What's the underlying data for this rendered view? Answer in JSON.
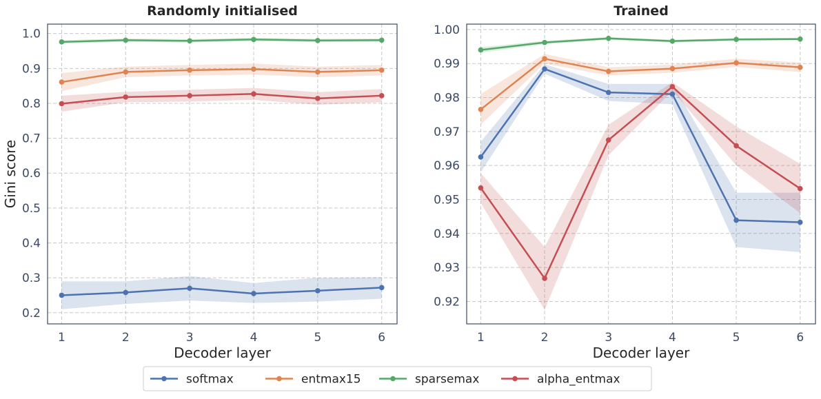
{
  "chart_data": [
    {
      "type": "line",
      "title": "Randomly initialised",
      "xlabel": "Decoder layer",
      "ylabel": "Gini score",
      "x": [
        1,
        2,
        3,
        4,
        5,
        6
      ],
      "xlim": [
        0.78,
        6.24
      ],
      "ylim": [
        0.168,
        1.027
      ],
      "yticks": [
        0.2,
        0.3,
        0.4,
        0.5,
        0.6,
        0.7,
        0.8,
        0.9,
        1.0
      ],
      "ytick_labels": [
        "0.2",
        "0.3",
        "0.4",
        "0.5",
        "0.6",
        "0.7",
        "0.8",
        "0.9",
        "1.0"
      ],
      "grid": true,
      "series": [
        {
          "name": "softmax",
          "color": "#4c72b0",
          "values": [
            0.25,
            0.258,
            0.27,
            0.255,
            0.263,
            0.272
          ],
          "lower": [
            0.21,
            0.225,
            0.235,
            0.228,
            0.232,
            0.24
          ],
          "upper": [
            0.29,
            0.29,
            0.305,
            0.285,
            0.3,
            0.302
          ]
        },
        {
          "name": "entmax15",
          "color": "#dd8452",
          "values": [
            0.861,
            0.89,
            0.895,
            0.898,
            0.89,
            0.895
          ],
          "lower": [
            0.835,
            0.875,
            0.88,
            0.882,
            0.875,
            0.88
          ],
          "upper": [
            0.887,
            0.905,
            0.91,
            0.914,
            0.905,
            0.91
          ]
        },
        {
          "name": "sparsemax",
          "color": "#55a868",
          "values": [
            0.976,
            0.981,
            0.979,
            0.983,
            0.98,
            0.981
          ],
          "lower": [
            0.971,
            0.976,
            0.974,
            0.978,
            0.975,
            0.976
          ],
          "upper": [
            0.981,
            0.986,
            0.984,
            0.988,
            0.985,
            0.986
          ]
        },
        {
          "name": "alpha_entmax",
          "color": "#c44e52",
          "values": [
            0.799,
            0.818,
            0.822,
            0.827,
            0.814,
            0.822
          ],
          "lower": [
            0.776,
            0.803,
            0.805,
            0.81,
            0.796,
            0.803
          ],
          "upper": [
            0.822,
            0.833,
            0.839,
            0.844,
            0.832,
            0.841
          ]
        }
      ]
    },
    {
      "type": "line",
      "title": "Trained",
      "xlabel": "Decoder layer",
      "ylabel": "",
      "x": [
        1,
        2,
        3,
        4,
        5,
        6
      ],
      "xlim": [
        0.78,
        6.24
      ],
      "ylim": [
        0.9134,
        1.0016
      ],
      "yticks": [
        0.92,
        0.93,
        0.94,
        0.95,
        0.96,
        0.97,
        0.98,
        0.99,
        1.0
      ],
      "ytick_labels": [
        "0.92",
        "0.93",
        "0.94",
        "0.95",
        "0.96",
        "0.97",
        "0.98",
        "0.99",
        "1.00"
      ],
      "grid": true,
      "series": [
        {
          "name": "softmax",
          "color": "#4c72b0",
          "values": [
            0.9625,
            0.9884,
            0.9815,
            0.981,
            0.9439,
            0.9433
          ],
          "lower": [
            0.958,
            0.987,
            0.979,
            0.978,
            0.936,
            0.9345
          ],
          "upper": [
            0.967,
            0.9898,
            0.984,
            0.984,
            0.952,
            0.952
          ]
        },
        {
          "name": "entmax15",
          "color": "#dd8452",
          "values": [
            0.9765,
            0.9914,
            0.9877,
            0.9885,
            0.9902,
            0.9889
          ],
          "lower": [
            0.972,
            0.99,
            0.9865,
            0.9873,
            0.989,
            0.9875
          ],
          "upper": [
            0.981,
            0.9928,
            0.9889,
            0.9897,
            0.9914,
            0.9903
          ]
        },
        {
          "name": "sparsemax",
          "color": "#55a868",
          "values": [
            0.994,
            0.9962,
            0.9974,
            0.9966,
            0.9971,
            0.9972
          ],
          "lower": [
            0.9932,
            0.9957,
            0.997,
            0.9962,
            0.9967,
            0.9968
          ],
          "upper": [
            0.9948,
            0.9967,
            0.9978,
            0.997,
            0.9975,
            0.9976
          ]
        },
        {
          "name": "alpha_entmax",
          "color": "#c44e52",
          "values": [
            0.9534,
            0.9268,
            0.9675,
            0.9832,
            0.9658,
            0.9532
          ],
          "lower": [
            0.949,
            0.9175,
            0.963,
            0.982,
            0.96,
            0.946
          ],
          "upper": [
            0.9578,
            0.936,
            0.972,
            0.9845,
            0.9715,
            0.9605
          ]
        }
      ]
    }
  ],
  "legend": {
    "placement": "bottom-center",
    "entries": [
      "softmax",
      "entmax15",
      "sparsemax",
      "alpha_entmax"
    ]
  }
}
